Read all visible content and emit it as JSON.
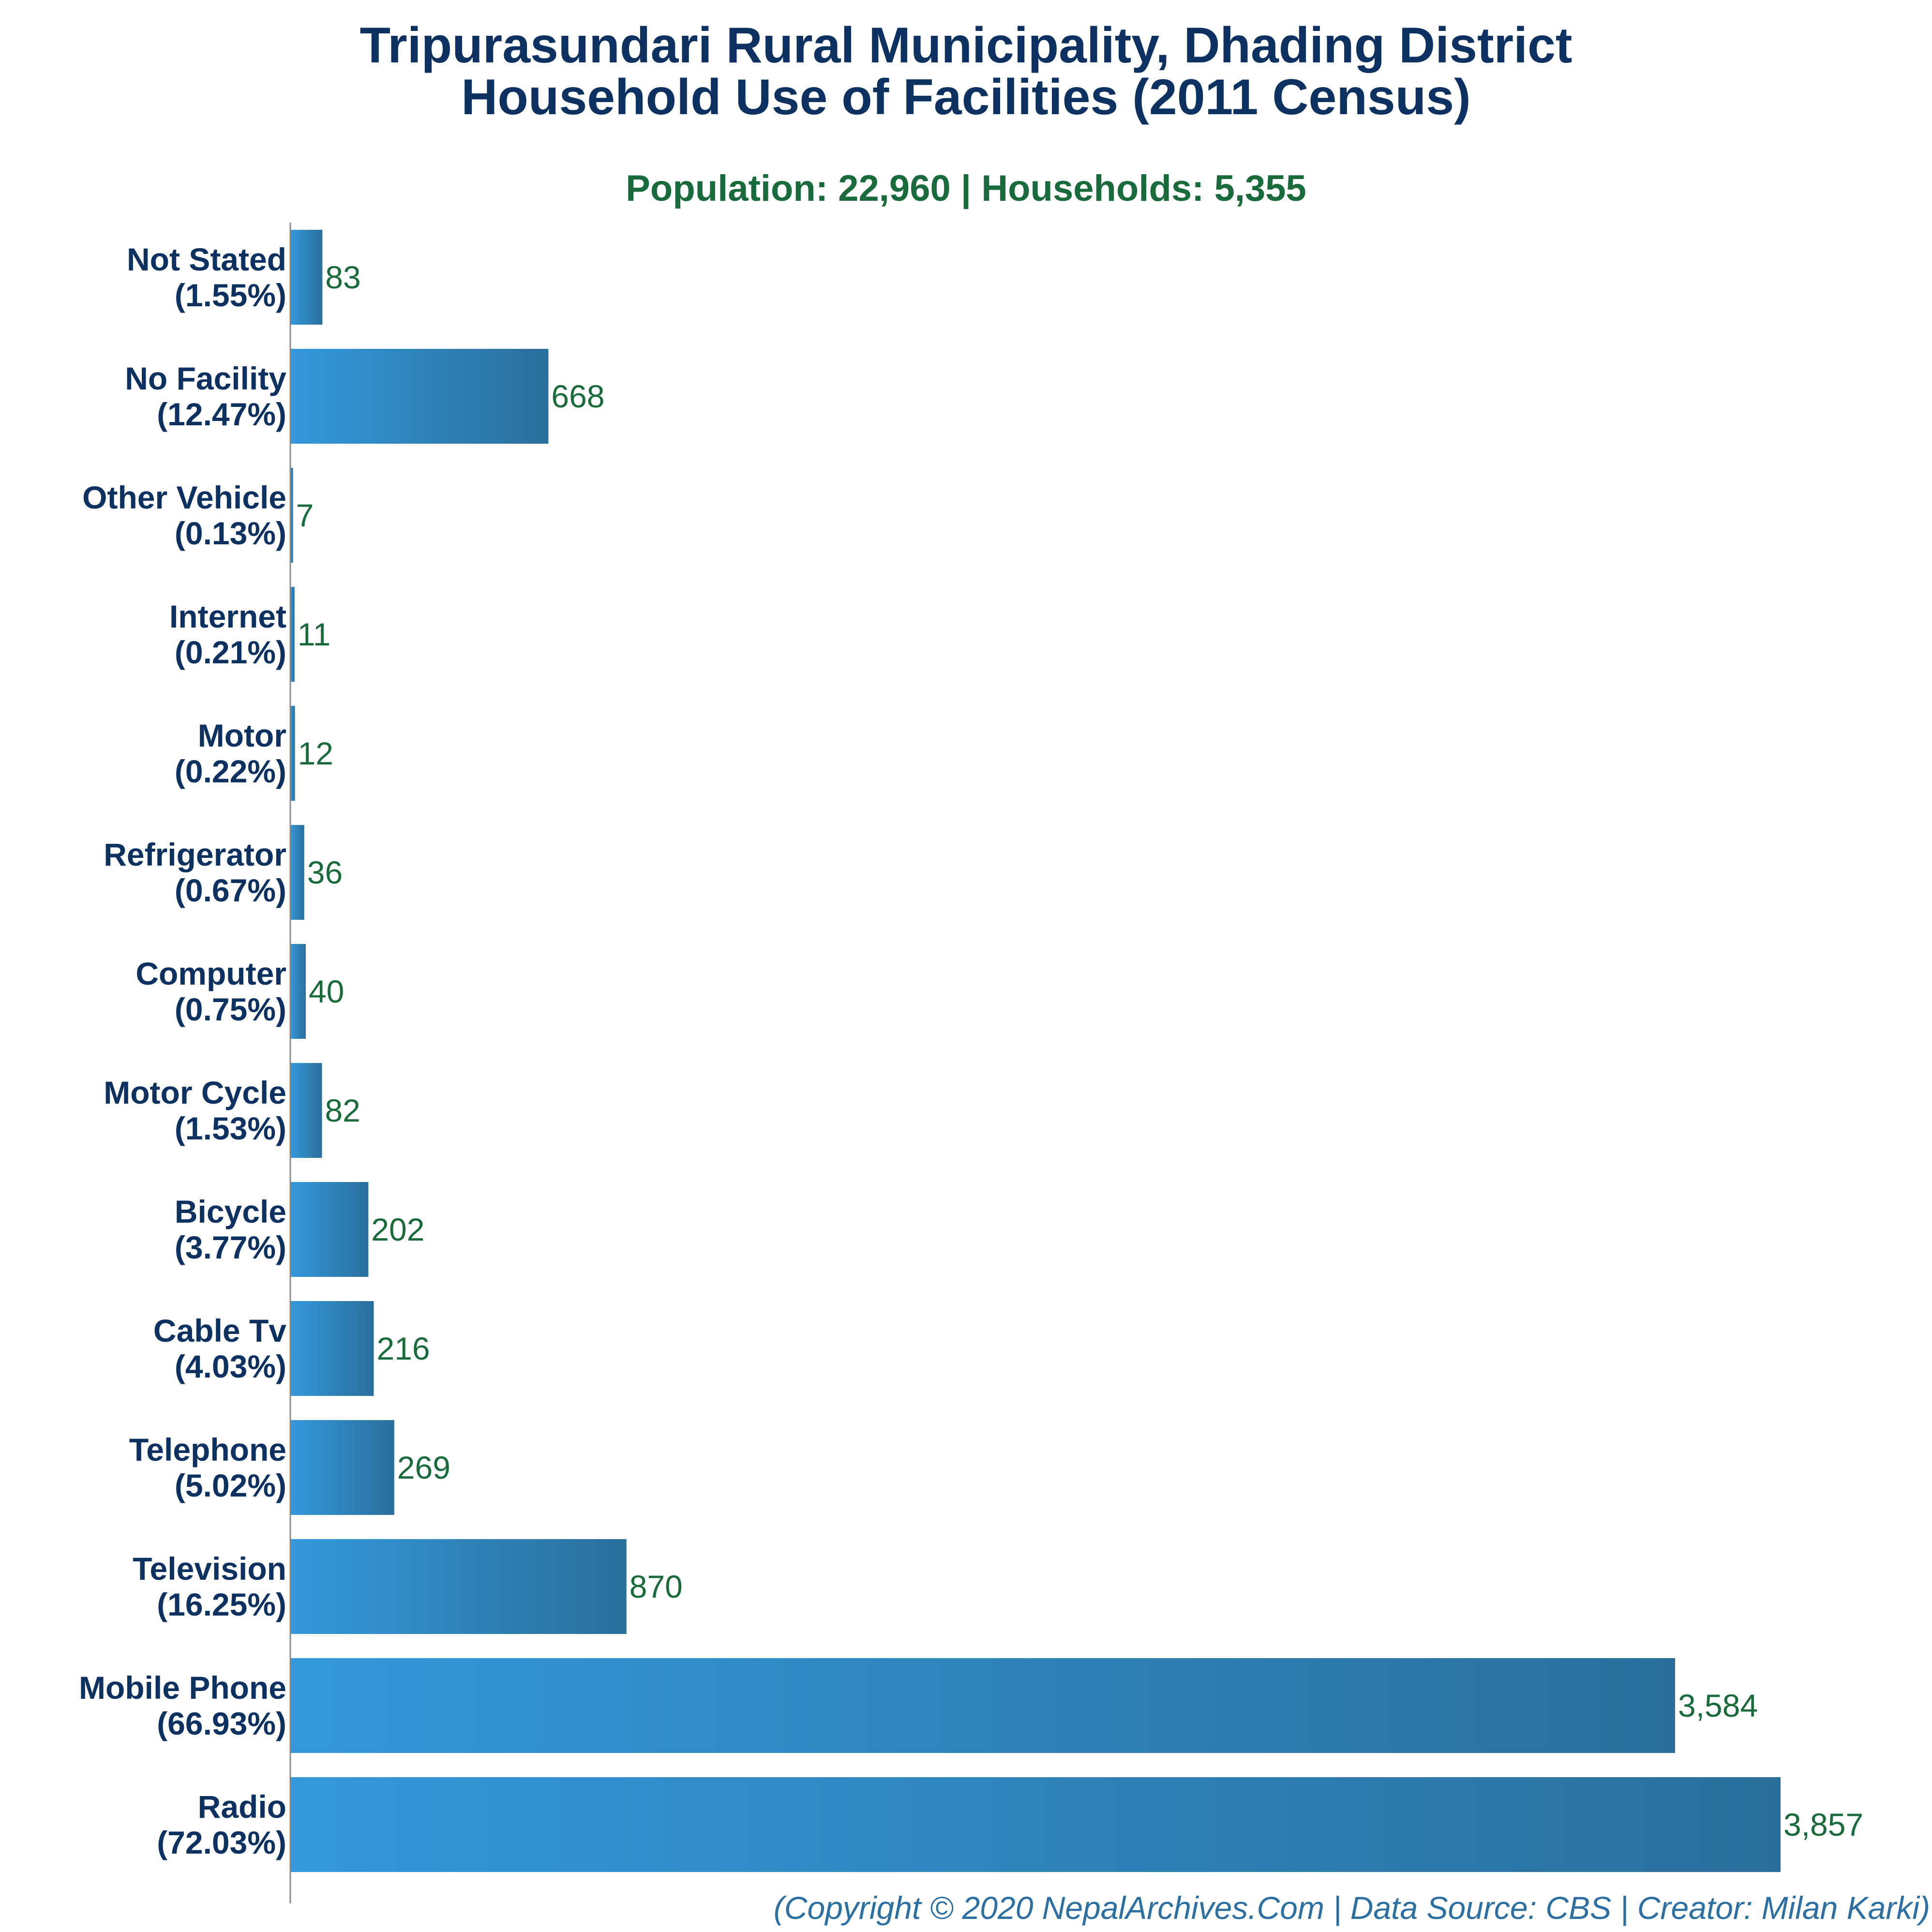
{
  "title_line1": "Tripurasundari Rural Municipality, Dhading District",
  "title_line2": "Household Use of Facilities (2011 Census)",
  "subtitle": "Population: 22,960 | Households: 5,355",
  "footer": "(Copyright © 2020 NepalArchives.Com | Data Source: CBS | Creator: Milan Karki)",
  "colors": {
    "bar_light": "#3498db",
    "bar_dark": "#2a6f9c",
    "title": "#0d3160",
    "value": "#1a6b3c",
    "footer": "#2b6fa3"
  },
  "chart_data": {
    "type": "bar",
    "orientation": "horizontal",
    "categories": [
      "Not Stated",
      "No Facility",
      "Other Vehicle",
      "Internet",
      "Motor",
      "Refrigerator",
      "Computer",
      "Motor Cycle",
      "Bicycle",
      "Cable Tv",
      "Telephone",
      "Television",
      "Mobile Phone",
      "Radio"
    ],
    "percent_labels": [
      "(1.55%)",
      "(12.47%)",
      "(0.13%)",
      "(0.21%)",
      "(0.22%)",
      "(0.67%)",
      "(0.75%)",
      "(1.53%)",
      "(3.77%)",
      "(4.03%)",
      "(5.02%)",
      "(16.25%)",
      "(66.93%)",
      "(72.03%)"
    ],
    "values": [
      83,
      668,
      7,
      11,
      12,
      36,
      40,
      82,
      202,
      216,
      269,
      870,
      3584,
      3857
    ],
    "value_labels": [
      "83",
      "668",
      "7",
      "11",
      "12",
      "36",
      "40",
      "82",
      "202",
      "216",
      "269",
      "870",
      "3,584",
      "3,857"
    ],
    "xlim": [
      0,
      3857
    ],
    "grid": false,
    "legend": "none"
  }
}
